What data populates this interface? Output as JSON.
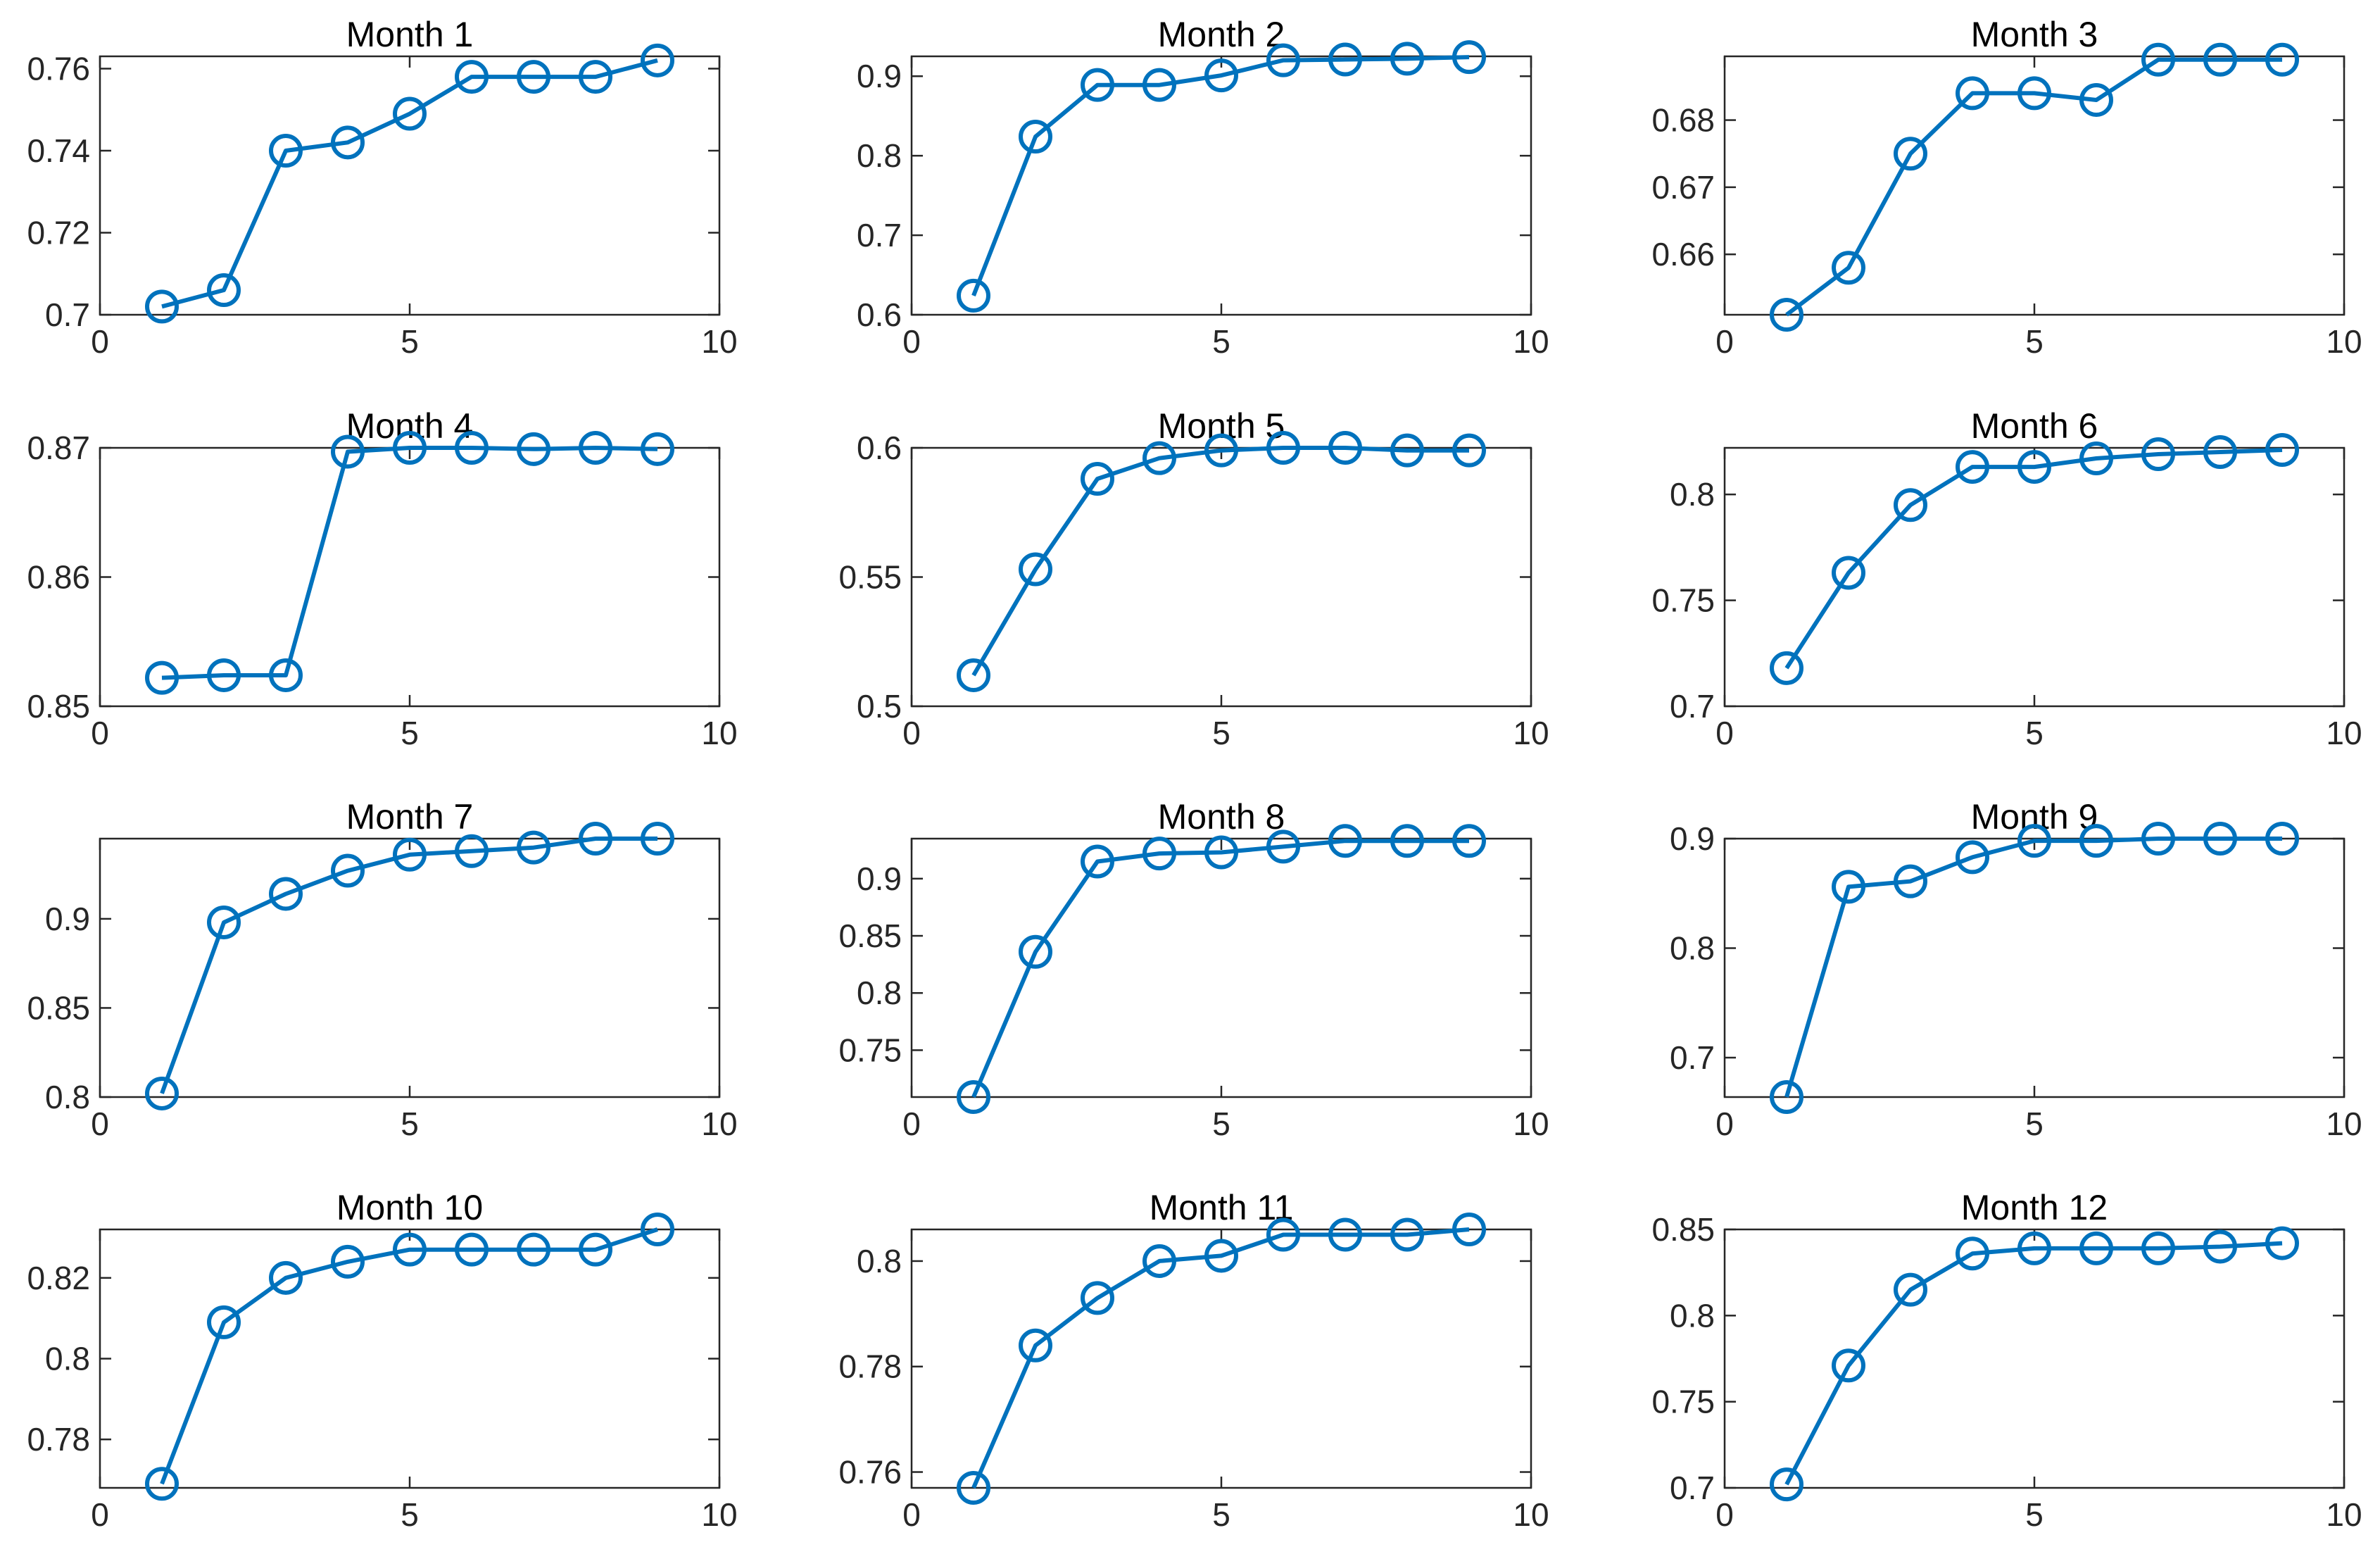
{
  "figure": {
    "background": "#ffffff",
    "series_color": "#0072BD"
  },
  "chart_data": [
    {
      "type": "line",
      "title": "Month 1",
      "x": [
        1,
        2,
        3,
        4,
        5,
        6,
        7,
        8,
        9
      ],
      "values": [
        0.702,
        0.706,
        0.74,
        0.742,
        0.749,
        0.758,
        0.758,
        0.758,
        0.762
      ],
      "xlim": [
        0,
        10
      ],
      "ylim": [
        0.7,
        0.763
      ],
      "xticks": [
        0,
        5,
        10
      ],
      "yticks": [
        0.7,
        0.72,
        0.74,
        0.76
      ],
      "xtick_labels": [
        "0",
        "5",
        "10"
      ],
      "ytick_labels": [
        "0.7",
        "0.72",
        "0.74",
        "0.76"
      ],
      "xlabel": "",
      "ylabel": "",
      "grid": false,
      "marker": "circle"
    },
    {
      "type": "line",
      "title": "Month 2",
      "x": [
        1,
        2,
        3,
        4,
        5,
        6,
        7,
        8,
        9
      ],
      "values": [
        0.624,
        0.824,
        0.889,
        0.889,
        0.901,
        0.92,
        0.921,
        0.922,
        0.924
      ],
      "xlim": [
        0,
        10
      ],
      "ylim": [
        0.6,
        0.925
      ],
      "xticks": [
        0,
        5,
        10
      ],
      "yticks": [
        0.6,
        0.7,
        0.8,
        0.9
      ],
      "xtick_labels": [
        "0",
        "5",
        "10"
      ],
      "ytick_labels": [
        "0.6",
        "0.7",
        "0.8",
        "0.9"
      ],
      "xlabel": "",
      "ylabel": "",
      "grid": false,
      "marker": "circle"
    },
    {
      "type": "line",
      "title": "Month 3",
      "x": [
        1,
        2,
        3,
        4,
        5,
        6,
        7,
        8,
        9
      ],
      "values": [
        0.651,
        0.658,
        0.675,
        0.684,
        0.684,
        0.683,
        0.689,
        0.689,
        0.689
      ],
      "xlim": [
        0,
        10
      ],
      "ylim": [
        0.651,
        0.6895
      ],
      "xticks": [
        0,
        5,
        10
      ],
      "yticks": [
        0.66,
        0.67,
        0.68
      ],
      "xtick_labels": [
        "0",
        "5",
        "10"
      ],
      "ytick_labels": [
        "0.66",
        "0.67",
        "0.68"
      ],
      "xlabel": "",
      "ylabel": "",
      "grid": false,
      "marker": "circle"
    },
    {
      "type": "line",
      "title": "Month 4",
      "x": [
        1,
        2,
        3,
        4,
        5,
        6,
        7,
        8,
        9
      ],
      "values": [
        0.8522,
        0.8524,
        0.8524,
        0.8697,
        0.87,
        0.87,
        0.8699,
        0.87,
        0.8699
      ],
      "xlim": [
        0,
        10
      ],
      "ylim": [
        0.85,
        0.87
      ],
      "xticks": [
        0,
        5,
        10
      ],
      "yticks": [
        0.85,
        0.86,
        0.87
      ],
      "xtick_labels": [
        "0",
        "5",
        "10"
      ],
      "ytick_labels": [
        "0.85",
        "0.86",
        "0.87"
      ],
      "xlabel": "",
      "ylabel": "",
      "grid": false,
      "marker": "circle"
    },
    {
      "type": "line",
      "title": "Month 5",
      "x": [
        1,
        2,
        3,
        4,
        5,
        6,
        7,
        8,
        9
      ],
      "values": [
        0.512,
        0.553,
        0.588,
        0.596,
        0.599,
        0.6,
        0.6,
        0.599,
        0.599
      ],
      "xlim": [
        0,
        10
      ],
      "ylim": [
        0.5,
        0.6
      ],
      "xticks": [
        0,
        5,
        10
      ],
      "yticks": [
        0.5,
        0.55,
        0.6
      ],
      "xtick_labels": [
        "0",
        "5",
        "10"
      ],
      "ytick_labels": [
        "0.5",
        "0.55",
        "0.6"
      ],
      "xlabel": "",
      "ylabel": "",
      "grid": false,
      "marker": "circle"
    },
    {
      "type": "line",
      "title": "Month 6",
      "x": [
        1,
        2,
        3,
        4,
        5,
        6,
        7,
        8,
        9
      ],
      "values": [
        0.718,
        0.763,
        0.795,
        0.813,
        0.813,
        0.817,
        0.819,
        0.82,
        0.821
      ],
      "xlim": [
        0,
        10
      ],
      "ylim": [
        0.7,
        0.822
      ],
      "xticks": [
        0,
        5,
        10
      ],
      "yticks": [
        0.7,
        0.75,
        0.8
      ],
      "xtick_labels": [
        "0",
        "5",
        "10"
      ],
      "ytick_labels": [
        "0.7",
        "0.75",
        "0.8"
      ],
      "xlabel": "",
      "ylabel": "",
      "grid": false,
      "marker": "circle"
    },
    {
      "type": "line",
      "title": "Month 7",
      "x": [
        1,
        2,
        3,
        4,
        5,
        6,
        7,
        8,
        9
      ],
      "values": [
        0.802,
        0.898,
        0.914,
        0.927,
        0.936,
        0.938,
        0.94,
        0.945,
        0.945
      ],
      "xlim": [
        0,
        10
      ],
      "ylim": [
        0.8,
        0.945
      ],
      "xticks": [
        0,
        5,
        10
      ],
      "yticks": [
        0.8,
        0.85,
        0.9
      ],
      "xtick_labels": [
        "0",
        "5",
        "10"
      ],
      "ytick_labels": [
        "0.8",
        "0.85",
        "0.9"
      ],
      "xlabel": "",
      "ylabel": "",
      "grid": false,
      "marker": "circle"
    },
    {
      "type": "line",
      "title": "Month 8",
      "x": [
        1,
        2,
        3,
        4,
        5,
        6,
        7,
        8,
        9
      ],
      "values": [
        0.709,
        0.836,
        0.915,
        0.922,
        0.923,
        0.928,
        0.933,
        0.933,
        0.933
      ],
      "xlim": [
        0,
        10
      ],
      "ylim": [
        0.709,
        0.935
      ],
      "xticks": [
        0,
        5,
        10
      ],
      "yticks": [
        0.75,
        0.8,
        0.85,
        0.9
      ],
      "xtick_labels": [
        "0",
        "5",
        "10"
      ],
      "ytick_labels": [
        "0.75",
        "0.8",
        "0.85",
        "0.9"
      ],
      "xlabel": "",
      "ylabel": "",
      "grid": false,
      "marker": "circle"
    },
    {
      "type": "line",
      "title": "Month 9",
      "x": [
        1,
        2,
        3,
        4,
        5,
        6,
        7,
        8,
        9
      ],
      "values": [
        0.664,
        0.856,
        0.861,
        0.883,
        0.898,
        0.898,
        0.9,
        0.9,
        0.9
      ],
      "xlim": [
        0,
        10
      ],
      "ylim": [
        0.664,
        0.9
      ],
      "xticks": [
        0,
        5,
        10
      ],
      "yticks": [
        0.7,
        0.8,
        0.9
      ],
      "xtick_labels": [
        "0",
        "5",
        "10"
      ],
      "ytick_labels": [
        "0.7",
        "0.8",
        "0.9"
      ],
      "xlabel": "",
      "ylabel": "",
      "grid": false,
      "marker": "circle"
    },
    {
      "type": "line",
      "title": "Month 10",
      "x": [
        1,
        2,
        3,
        4,
        5,
        6,
        7,
        8,
        9
      ],
      "values": [
        0.769,
        0.809,
        0.82,
        0.824,
        0.827,
        0.827,
        0.827,
        0.827,
        0.832
      ],
      "xlim": [
        0,
        10
      ],
      "ylim": [
        0.768,
        0.832
      ],
      "xticks": [
        0,
        5,
        10
      ],
      "yticks": [
        0.78,
        0.8,
        0.82
      ],
      "xtick_labels": [
        "0",
        "5",
        "10"
      ],
      "ytick_labels": [
        "0.78",
        "0.8",
        "0.82"
      ],
      "xlabel": "",
      "ylabel": "",
      "grid": false,
      "marker": "circle"
    },
    {
      "type": "line",
      "title": "Month 11",
      "x": [
        1,
        2,
        3,
        4,
        5,
        6,
        7,
        8,
        9
      ],
      "values": [
        0.757,
        0.784,
        0.793,
        0.8,
        0.801,
        0.805,
        0.805,
        0.805,
        0.806
      ],
      "xlim": [
        0,
        10
      ],
      "ylim": [
        0.757,
        0.806
      ],
      "xticks": [
        0,
        5,
        10
      ],
      "yticks": [
        0.76,
        0.78,
        0.8
      ],
      "xtick_labels": [
        "0",
        "5",
        "10"
      ],
      "ytick_labels": [
        "0.76",
        "0.78",
        "0.8"
      ],
      "xlabel": "",
      "ylabel": "",
      "grid": false,
      "marker": "circle"
    },
    {
      "type": "line",
      "title": "Month 12",
      "x": [
        1,
        2,
        3,
        4,
        5,
        6,
        7,
        8,
        9
      ],
      "values": [
        0.702,
        0.771,
        0.815,
        0.836,
        0.839,
        0.839,
        0.839,
        0.84,
        0.842
      ],
      "xlim": [
        0,
        10
      ],
      "ylim": [
        0.7,
        0.85
      ],
      "xticks": [
        0,
        5,
        10
      ],
      "yticks": [
        0.7,
        0.75,
        0.8,
        0.85
      ],
      "xtick_labels": [
        "0",
        "5",
        "10"
      ],
      "ytick_labels": [
        "0.7",
        "0.75",
        "0.8",
        "0.85"
      ],
      "xlabel": "",
      "ylabel": "",
      "grid": false,
      "marker": "circle"
    }
  ]
}
